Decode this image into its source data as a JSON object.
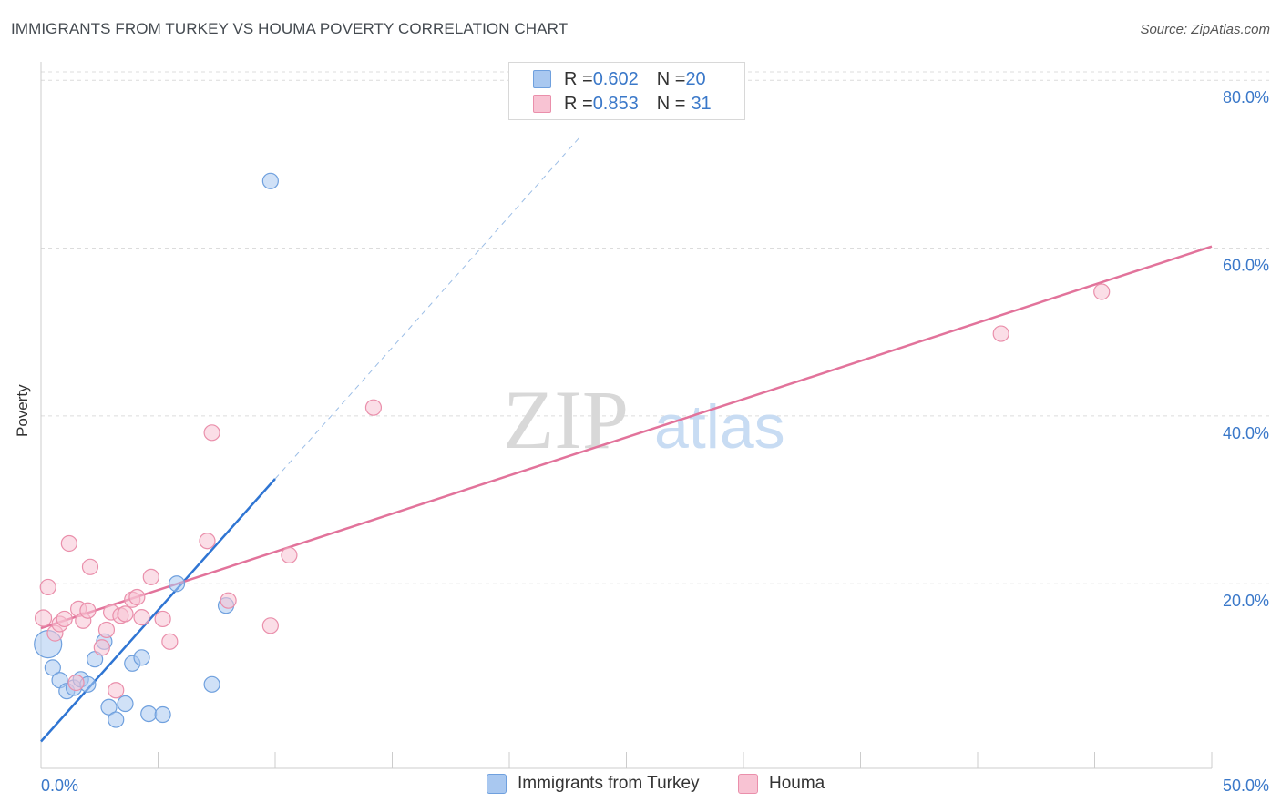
{
  "header": {
    "title": "IMMIGRANTS FROM TURKEY VS HOUMA POVERTY CORRELATION CHART",
    "source": "Source: ZipAtlas.com"
  },
  "watermark": {
    "zip": "ZIP",
    "atlas": "atlas"
  },
  "legend": {
    "rows": [
      {
        "r_label": "R = ",
        "r_value": "0.602",
        "n_label": "N = ",
        "n_value": "20",
        "color": "#a9c8f0",
        "border": "#6fa0de"
      },
      {
        "r_label": "R = ",
        "r_value": "0.853",
        "n_label": "N = ",
        "n_value": "31",
        "color": "#f8c3d3",
        "border": "#ea8fab"
      }
    ]
  },
  "bottom_legend": {
    "items": [
      {
        "label": "Immigrants from Turkey",
        "color": "#a9c8f0",
        "border": "#6fa0de"
      },
      {
        "label": "Houma",
        "color": "#f8c3d3",
        "border": "#ea8fab"
      }
    ]
  },
  "chart_data": {
    "type": "scatter",
    "title": "IMMIGRANTS FROM TURKEY VS HOUMA POVERTY CORRELATION CHART",
    "xlabel": "",
    "ylabel": "Poverty",
    "xlim": [
      0,
      50
    ],
    "ylim": [
      -2,
      81
    ],
    "x_tick_labels": [
      "0.0%",
      "50.0%"
    ],
    "y_ticks": [
      20,
      40,
      60,
      80
    ],
    "y_tick_labels": [
      "20.0%",
      "40.0%",
      "60.0%",
      "80.0%"
    ],
    "grid": true,
    "series": [
      {
        "name": "Immigrants from Turkey",
        "color": "#6fa0de",
        "fill": "#a9c8f0",
        "trend_color": "#2f75d3",
        "trend": {
          "x0": 0,
          "y0": 1.2,
          "x1": 10,
          "y1": 32.5,
          "dashed_to_x": 23
        },
        "points": [
          {
            "x": 0.3,
            "y": 12.8,
            "size": 30
          },
          {
            "x": 0.5,
            "y": 10.0
          },
          {
            "x": 0.8,
            "y": 8.5
          },
          {
            "x": 1.1,
            "y": 7.2
          },
          {
            "x": 1.4,
            "y": 7.6
          },
          {
            "x": 1.7,
            "y": 8.6
          },
          {
            "x": 2.0,
            "y": 8.0
          },
          {
            "x": 2.3,
            "y": 11.0
          },
          {
            "x": 2.7,
            "y": 13.1
          },
          {
            "x": 2.9,
            "y": 5.3
          },
          {
            "x": 3.2,
            "y": 3.8
          },
          {
            "x": 3.6,
            "y": 5.7
          },
          {
            "x": 3.9,
            "y": 10.5
          },
          {
            "x": 4.3,
            "y": 11.2
          },
          {
            "x": 4.6,
            "y": 4.5
          },
          {
            "x": 5.2,
            "y": 4.4
          },
          {
            "x": 5.8,
            "y": 20.0
          },
          {
            "x": 7.3,
            "y": 8.0
          },
          {
            "x": 7.9,
            "y": 17.4
          },
          {
            "x": 9.8,
            "y": 68.0
          }
        ]
      },
      {
        "name": "Houma",
        "color": "#ea8fab",
        "fill": "#f8c3d3",
        "trend_color": "#e2739b",
        "trend": {
          "x0": 0,
          "y0": 14.7,
          "x1": 50,
          "y1": 60.2
        },
        "points": [
          {
            "x": 0.1,
            "y": 15.9,
            "size": 18
          },
          {
            "x": 0.3,
            "y": 19.6
          },
          {
            "x": 0.6,
            "y": 14.1
          },
          {
            "x": 0.8,
            "y": 15.2
          },
          {
            "x": 1.0,
            "y": 15.8
          },
          {
            "x": 1.2,
            "y": 24.8
          },
          {
            "x": 1.5,
            "y": 8.2
          },
          {
            "x": 1.6,
            "y": 17.0
          },
          {
            "x": 1.8,
            "y": 15.6
          },
          {
            "x": 2.0,
            "y": 16.8
          },
          {
            "x": 2.1,
            "y": 22.0
          },
          {
            "x": 2.6,
            "y": 12.4
          },
          {
            "x": 2.8,
            "y": 14.5
          },
          {
            "x": 3.0,
            "y": 16.6
          },
          {
            "x": 3.2,
            "y": 7.3
          },
          {
            "x": 3.4,
            "y": 16.2
          },
          {
            "x": 3.6,
            "y": 16.4
          },
          {
            "x": 3.9,
            "y": 18.1
          },
          {
            "x": 4.1,
            "y": 18.4
          },
          {
            "x": 4.3,
            "y": 16.0
          },
          {
            "x": 4.7,
            "y": 20.8
          },
          {
            "x": 5.2,
            "y": 15.8
          },
          {
            "x": 5.5,
            "y": 13.1
          },
          {
            "x": 7.1,
            "y": 25.1
          },
          {
            "x": 7.3,
            "y": 38.0
          },
          {
            "x": 8.0,
            "y": 18.0
          },
          {
            "x": 9.8,
            "y": 15.0
          },
          {
            "x": 10.6,
            "y": 23.4
          },
          {
            "x": 14.2,
            "y": 41.0
          },
          {
            "x": 41.0,
            "y": 49.8
          },
          {
            "x": 45.3,
            "y": 54.8
          }
        ]
      }
    ]
  }
}
